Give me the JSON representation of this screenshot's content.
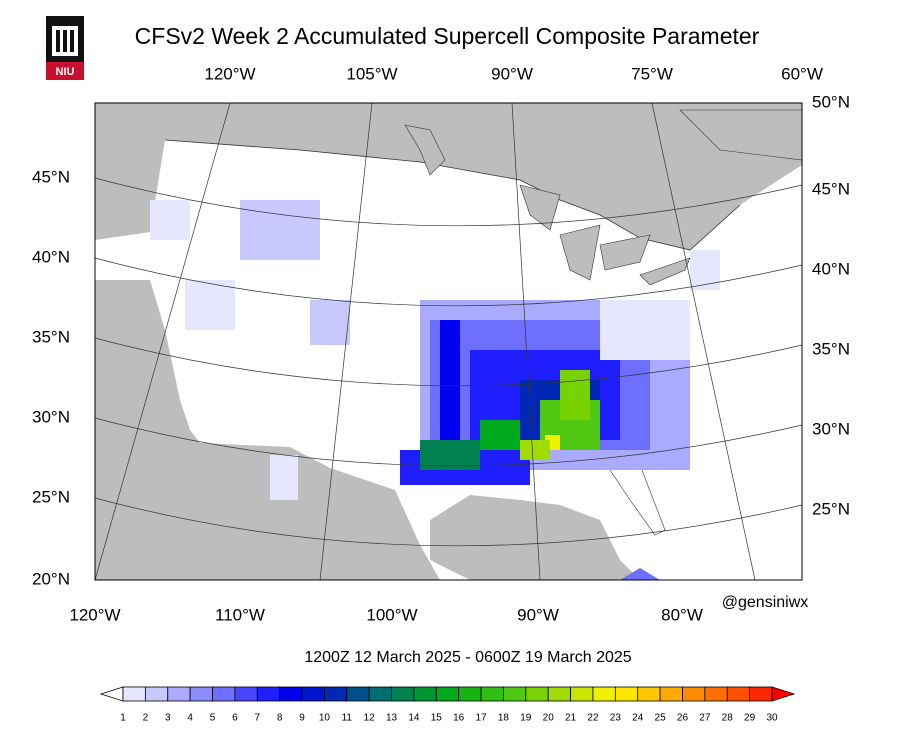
{
  "logo": "NIU",
  "title": "CFSv2 Week 2 Accumulated Supercell Composite Parameter",
  "top_lon_labels": [
    "120°W",
    "105°W",
    "90°W",
    "75°W",
    "60°W"
  ],
  "right_lat_labels": [
    "50°N",
    "45°N",
    "40°N",
    "35°N",
    "30°N",
    "25°N"
  ],
  "left_lat_labels": [
    "45°N",
    "40°N",
    "35°N",
    "30°N",
    "25°N",
    "20°N"
  ],
  "bottom_lon_labels": [
    "120°W",
    "110°W",
    "100°W",
    "90°W",
    "80°W"
  ],
  "credit": "@gensiniwx",
  "valid_period": "1200Z 12  March  2025  - 0600Z 19  March  2025",
  "colorbar": {
    "labels": [
      1,
      2,
      3,
      4,
      5,
      6,
      7,
      8,
      9,
      10,
      11,
      12,
      13,
      14,
      15,
      16,
      17,
      18,
      19,
      20,
      21,
      22,
      23,
      24,
      25,
      26,
      27,
      28,
      29,
      30
    ],
    "colors": [
      "#ffffff",
      "#e6e6ff",
      "#c8c8ff",
      "#aaaaff",
      "#8c8cff",
      "#6e6eff",
      "#4646ff",
      "#1e1eff",
      "#0000f0",
      "#0014d2",
      "#0028b4",
      "#00508c",
      "#006e6e",
      "#008250",
      "#009632",
      "#00aa1e",
      "#14b414",
      "#32be14",
      "#50c814",
      "#78d200",
      "#a0dc00",
      "#c8e600",
      "#f0f000",
      "#ffe600",
      "#ffc800",
      "#ffaa00",
      "#ff8c00",
      "#ff6e00",
      "#ff5000",
      "#ff2800",
      "#ff0000"
    ]
  }
}
